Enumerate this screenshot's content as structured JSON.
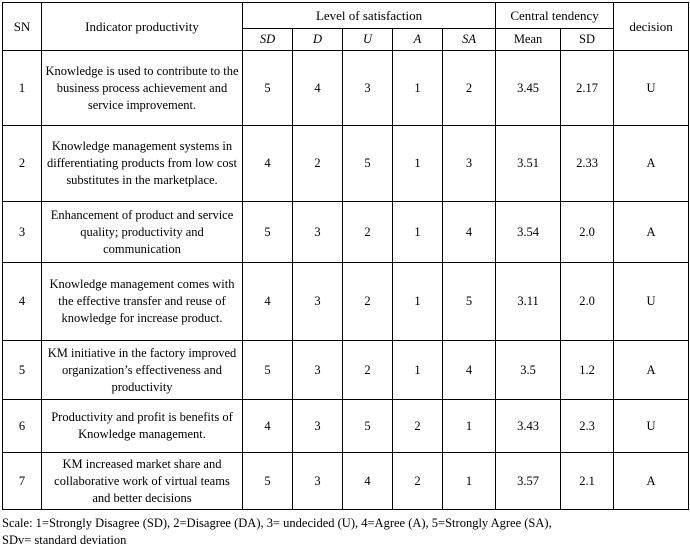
{
  "table": {
    "headers": {
      "sn": "SN",
      "indicator": "Indicator productivity",
      "satisfaction_group": "Level of satisfaction",
      "central_group": "Central tendency",
      "decision": "decision",
      "satisfaction_cols": [
        "SD",
        "D",
        "U",
        "A",
        "SA"
      ],
      "central_cols": [
        "Mean",
        "SD"
      ]
    },
    "rows": [
      {
        "sn": "1",
        "indicator": "Knowledge is used to contribute to the business process achievement and service improvement.",
        "values": [
          "5",
          "4",
          "3",
          "1",
          "2"
        ],
        "mean": "3.45",
        "sd": "2.17",
        "decision": "U"
      },
      {
        "sn": "2",
        "indicator": "Knowledge management systems in differentiating products from low cost substitutes in the marketplace.",
        "values": [
          "4",
          "2",
          "5",
          "1",
          "3"
        ],
        "mean": "3.51",
        "sd": "2.33",
        "decision": "A"
      },
      {
        "sn": "3",
        "indicator": "Enhancement of product and service quality; productivity and communication",
        "values": [
          "5",
          "3",
          "2",
          "1",
          "4"
        ],
        "mean": "3.54",
        "sd": "2.0",
        "decision": "A"
      },
      {
        "sn": "4",
        "indicator": "Knowledge management comes with the effective transfer and reuse of knowledge for increase product.",
        "values": [
          "4",
          "3",
          "2",
          "1",
          "5"
        ],
        "mean": "3.11",
        "sd": "2.0",
        "decision": "U"
      },
      {
        "sn": "5",
        "indicator": "KM initiative in the factory improved organization’s effectiveness and productivity",
        "values": [
          "5",
          "3",
          "2",
          "1",
          "4"
        ],
        "mean": "3.5",
        "sd": "1.2",
        "decision": "A"
      },
      {
        "sn": "6",
        "indicator": "Productivity and profit is benefits of Knowledge management.",
        "values": [
          "4",
          "3",
          "5",
          "2",
          "1"
        ],
        "mean": "3.43",
        "sd": "2.3",
        "decision": "U"
      },
      {
        "sn": "7",
        "indicator": "KM increased market share and collaborative work of virtual teams and better decisions",
        "values": [
          "5",
          "3",
          "4",
          "2",
          "1"
        ],
        "mean": "3.57",
        "sd": "2.1",
        "decision": "A"
      }
    ]
  },
  "footnote": {
    "line1": "Scale: 1=Strongly Disagree (SD), 2=Disagree (DA), 3= undecided (U), 4=Agree (A), 5=Strongly Agree (SA),",
    "line2": "SDv= standard deviation"
  }
}
